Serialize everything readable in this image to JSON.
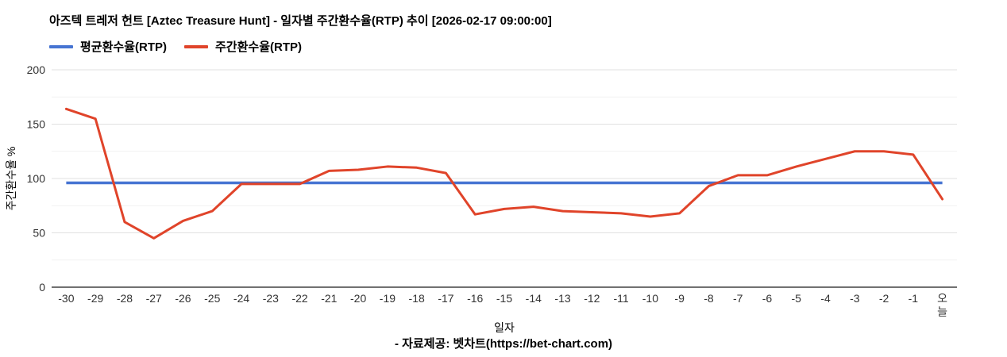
{
  "header": {
    "title": "아즈텍 트레저 헌트 [Aztec Treasure Hunt] - 일자별 주간환수율(RTP) 추이 [2026-02-17 09:00:00]"
  },
  "legend": {
    "items": [
      {
        "label": "평균환수율(RTP)",
        "color": "#4674d2"
      },
      {
        "label": "주간환수율(RTP)",
        "color": "#e0442a"
      }
    ]
  },
  "chart_data": {
    "type": "line",
    "title": "아즈텍 트레저 헌트 [Aztec Treasure Hunt] - 일자별 주간환수율(RTP) 추이 [2026-02-17 09:00:00]",
    "xlabel": "일자",
    "ylabel": "주간환수율 %",
    "ylim": [
      0,
      200
    ],
    "yticks": [
      0,
      50,
      100,
      150,
      200
    ],
    "minor_yticks": [
      25,
      75,
      125,
      175
    ],
    "grid": true,
    "legend_position": "top-left",
    "grid_color": "#e0e0e0",
    "minor_grid_color": "#f1f1f1",
    "axis_color": "#424242",
    "tick_label_color": "#333333",
    "categories": [
      "-30",
      "-29",
      "-28",
      "-27",
      "-26",
      "-25",
      "-24",
      "-23",
      "-22",
      "-21",
      "-20",
      "-19",
      "-18",
      "-17",
      "-16",
      "-15",
      "-14",
      "-13",
      "-12",
      "-11",
      "-10",
      "-9",
      "-8",
      "-7",
      "-6",
      "-5",
      "-4",
      "-3",
      "-2",
      "-1",
      "오늘"
    ],
    "series": [
      {
        "name": "평균환수율(RTP)",
        "color": "#4674d2",
        "type": "constant",
        "value": 96
      },
      {
        "name": "주간환수율(RTP)",
        "color": "#e0442a",
        "type": "line",
        "values": [
          164,
          155,
          60,
          45,
          61,
          70,
          95,
          95,
          95,
          107,
          108,
          111,
          110,
          105,
          67,
          72,
          74,
          70,
          69,
          68,
          65,
          68,
          93,
          103,
          103,
          111,
          118,
          125,
          125,
          122,
          81
        ]
      }
    ]
  },
  "footer": {
    "source": "- 자료제공: 벳차트(https://bet-chart.com)"
  }
}
